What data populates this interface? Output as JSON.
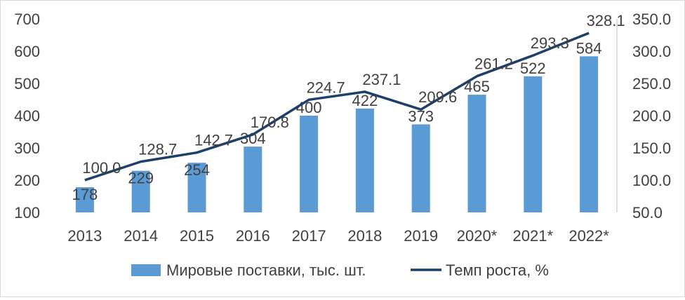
{
  "chart_data": {
    "type": "bar+line",
    "categories": [
      "2013",
      "2014",
      "2015",
      "2016",
      "2017",
      "2018",
      "2019",
      "2020*",
      "2021*",
      "2022*"
    ],
    "series": [
      {
        "name": "Мировые поставки, тыс. шт.",
        "type": "bar",
        "axis": "left",
        "values": [
          178,
          229,
          254,
          304,
          400,
          422,
          373,
          465,
          522,
          584
        ],
        "labels": [
          "178",
          "229",
          "254",
          "304",
          "400",
          "422",
          "373",
          "465",
          "522",
          "584"
        ]
      },
      {
        "name": "Темп роста, %",
        "type": "line",
        "axis": "right",
        "values": [
          100.0,
          128.7,
          142.7,
          170.8,
          224.7,
          237.1,
          209.6,
          261.2,
          293.3,
          328.1
        ],
        "labels": [
          "100.0",
          "128.7",
          "142.7",
          "170.8",
          "224.7",
          "237.1",
          "209.6",
          "261.2",
          "293.3",
          "328.1"
        ]
      }
    ],
    "y_left": {
      "ylim": [
        100,
        700
      ],
      "ticks": [
        "100",
        "200",
        "300",
        "400",
        "500",
        "600",
        "700"
      ]
    },
    "y_right": {
      "ylim": [
        50,
        350
      ],
      "ticks": [
        "50.0",
        "100.0",
        "150.0",
        "200.0",
        "250.0",
        "300.0",
        "350.0"
      ]
    },
    "grid": false,
    "legend_position": "bottom",
    "colors": {
      "bar": "#5b9bd5",
      "line": "#1f3f6b",
      "text": "#404040"
    }
  }
}
